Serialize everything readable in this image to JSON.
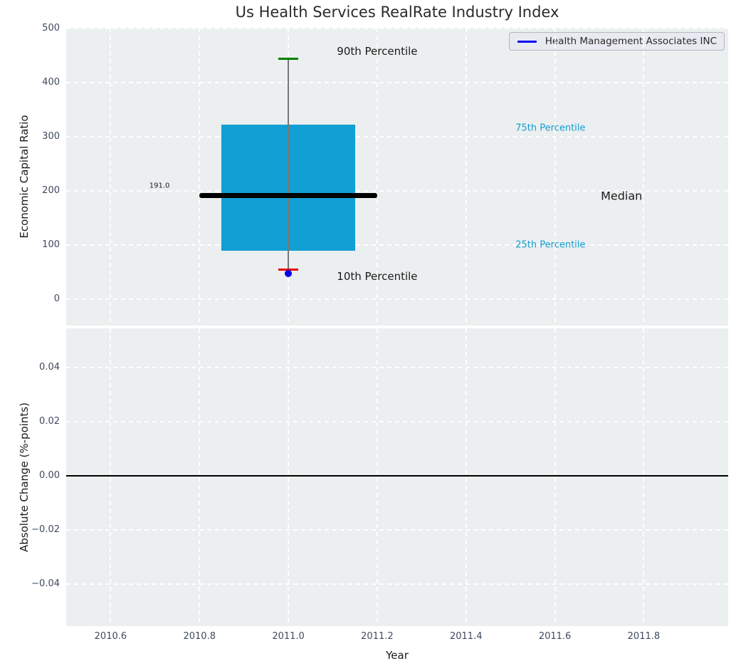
{
  "title": "Us Health Services RealRate Industry Index",
  "colors": {
    "axes_bg": "#ebeff0",
    "grid": "#ffffff",
    "box_fill": "#119fd4",
    "median_line": "#000000",
    "whisker": "#777777",
    "cap_90th": "#008000",
    "cap_10th": "#e60000",
    "company_point": "#0000ee",
    "legend_line": "#0000ee",
    "percentile_label": "#149cd2",
    "tick_label": "#3f4a5f",
    "text": "#1a1a1a"
  },
  "x_axis": {
    "label": "Year",
    "xlim": [
      2010.5,
      2011.99
    ],
    "ticks": [
      2010.6,
      2010.8,
      2011.0,
      2011.2,
      2011.4,
      2011.6,
      2011.8
    ],
    "tick_labels": [
      "2010.6",
      "2010.8",
      "2011.0",
      "2011.2",
      "2011.4",
      "2011.6",
      "2011.8"
    ]
  },
  "chart_data": [
    {
      "type": "boxplot",
      "title": "Us Health Services RealRate Industry Index",
      "ylabel": "Economic Capital Ratio",
      "ylim": [
        -48.5,
        501.5
      ],
      "yticks": [
        0,
        100,
        200,
        300,
        400,
        500
      ],
      "ytick_labels": [
        "0",
        "100",
        "200",
        "300",
        "400",
        "500"
      ],
      "grid": true,
      "legend": {
        "position": "upper right",
        "label": "Health Management Associates INC"
      },
      "box": {
        "x": 2011.0,
        "p10": 55,
        "q1": 90,
        "median": 191.0,
        "q3": 323,
        "p90": 444,
        "box_halfwidth": 0.15,
        "median_halfwidth": 0.2,
        "cap_halfwidth": 0.015
      },
      "company_point": {
        "name": "Health Management Associates INC",
        "x": 2011.0,
        "y": 48
      },
      "annotations": [
        {
          "name": "label-90th-percentile",
          "text": "90th Percentile",
          "x": 2011.2,
          "y": 458,
          "size": 15,
          "color": "#1a1a1a"
        },
        {
          "name": "label-10th-percentile",
          "text": "10th Percentile",
          "x": 2011.2,
          "y": 42,
          "size": 15,
          "color": "#1a1a1a"
        },
        {
          "name": "label-75th-percentile",
          "text": "75th Percentile",
          "x": 2011.59,
          "y": 316,
          "size": 13,
          "color": "#149cd2"
        },
        {
          "name": "label-25th-percentile",
          "text": "25th Percentile",
          "x": 2011.59,
          "y": 100,
          "size": 13,
          "color": "#149cd2"
        },
        {
          "name": "label-median",
          "text": "Median",
          "x": 2011.75,
          "y": 191,
          "size": 16,
          "color": "#1a1a1a"
        },
        {
          "name": "label-median-value",
          "text": "191.0",
          "x": 2010.71,
          "y": 210,
          "size": 10,
          "color": "#1a1a1a"
        }
      ]
    },
    {
      "type": "line",
      "ylabel": "Absolute Change (%-points)",
      "xlabel": "Year",
      "ylim": [
        -0.0556,
        0.0546
      ],
      "yticks": [
        0.04,
        0.02,
        0.0,
        -0.02,
        -0.04
      ],
      "ytick_labels": [
        "0.04",
        "0.02",
        "0.00",
        "−0.02",
        "−0.04"
      ],
      "grid": true,
      "zero_line": 0.0,
      "series": []
    }
  ]
}
